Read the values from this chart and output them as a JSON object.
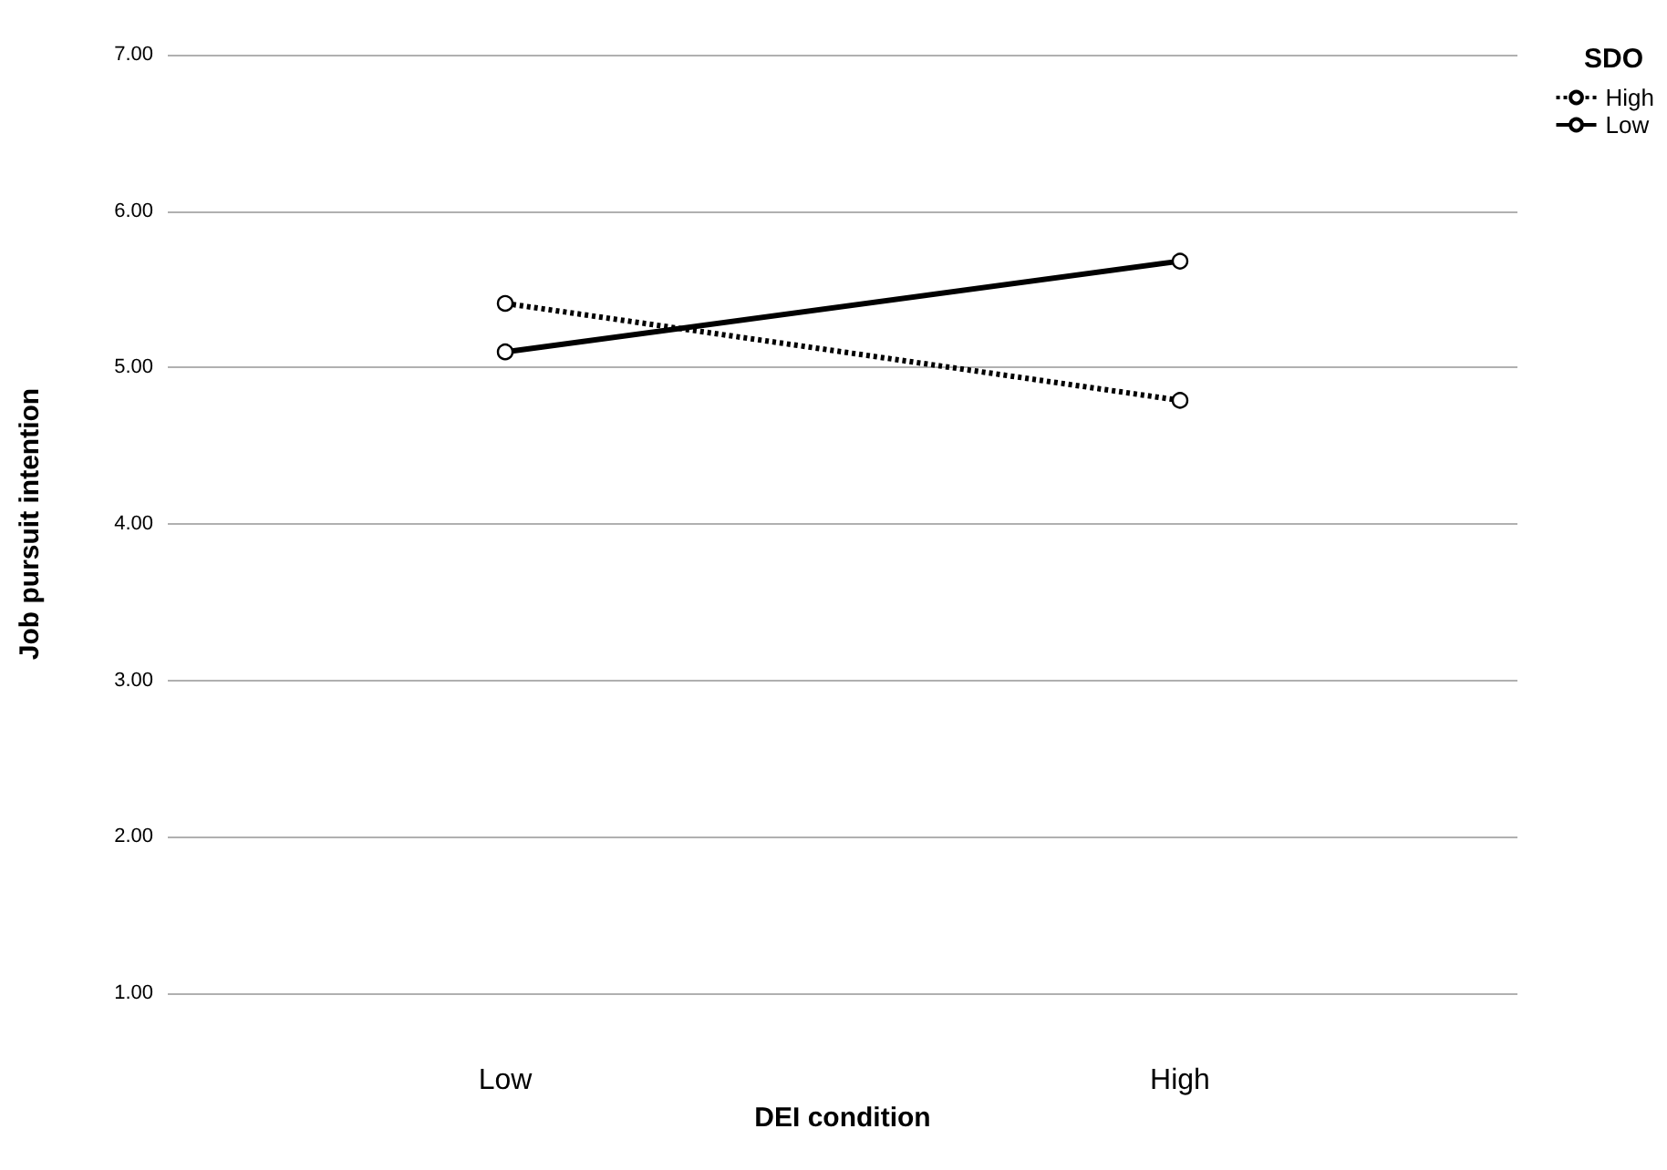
{
  "chart_data": {
    "type": "line",
    "xlabel": "DEI condition",
    "ylabel": "Job pursuit intention",
    "legend_title": "SDO",
    "categories": [
      "Low",
      "High"
    ],
    "series": [
      {
        "name": "High",
        "color": "#000000",
        "values": [
          5.41,
          4.79
        ],
        "line_style": "dotted"
      },
      {
        "name": "Low",
        "color": "#000000",
        "values": [
          5.1,
          5.68
        ],
        "line_style": "solid"
      }
    ],
    "ylim": [
      1,
      7
    ],
    "yticks": [
      {
        "value": 1,
        "label": "1.00"
      },
      {
        "value": 2,
        "label": "2.00"
      },
      {
        "value": 3,
        "label": "3.00"
      },
      {
        "value": 4,
        "label": "4.00"
      },
      {
        "value": 5,
        "label": "5.00"
      },
      {
        "value": 6,
        "label": "6.00"
      },
      {
        "value": 7,
        "label": "7.00"
      }
    ],
    "grid": "y",
    "legend": "top right",
    "marker": "circle"
  }
}
